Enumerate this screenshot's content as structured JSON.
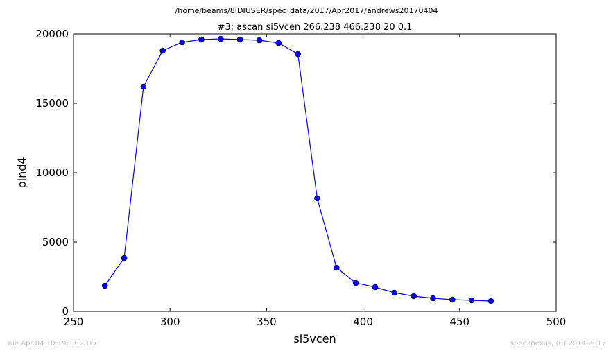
{
  "figure": {
    "suptitle": "/home/beams/8IDIUSER/spec_data/2017/Apr2017/andrews20170404",
    "timestamp": "Tue Apr 04 10:19:11 2017",
    "credit": "spec2nexus, (C) 2014-2017"
  },
  "colors": {
    "series": "#0000ff",
    "footer_text": "#c0c0c0"
  },
  "chart_data": {
    "type": "line",
    "title": "#3: ascan  si5vcen 266.238 466.238  20 0.1",
    "xlabel": "si5vcen",
    "ylabel": "pind4",
    "xlim": [
      250,
      500
    ],
    "ylim": [
      0,
      20000
    ],
    "xticks": [
      250,
      300,
      350,
      400,
      450,
      500
    ],
    "yticks": [
      0,
      5000,
      10000,
      15000,
      20000
    ],
    "grid": false,
    "marker": "circle",
    "x": [
      266.238,
      276.238,
      286.238,
      296.238,
      306.238,
      316.238,
      326.238,
      336.238,
      346.238,
      356.238,
      366.238,
      376.238,
      386.238,
      396.238,
      406.238,
      416.238,
      426.238,
      436.238,
      446.238,
      456.238,
      466.238
    ],
    "y": [
      1850,
      3850,
      16200,
      18800,
      19400,
      19600,
      19650,
      19600,
      19550,
      19350,
      18550,
      8150,
      3150,
      2050,
      1750,
      1350,
      1100,
      950,
      850,
      800,
      750
    ]
  }
}
